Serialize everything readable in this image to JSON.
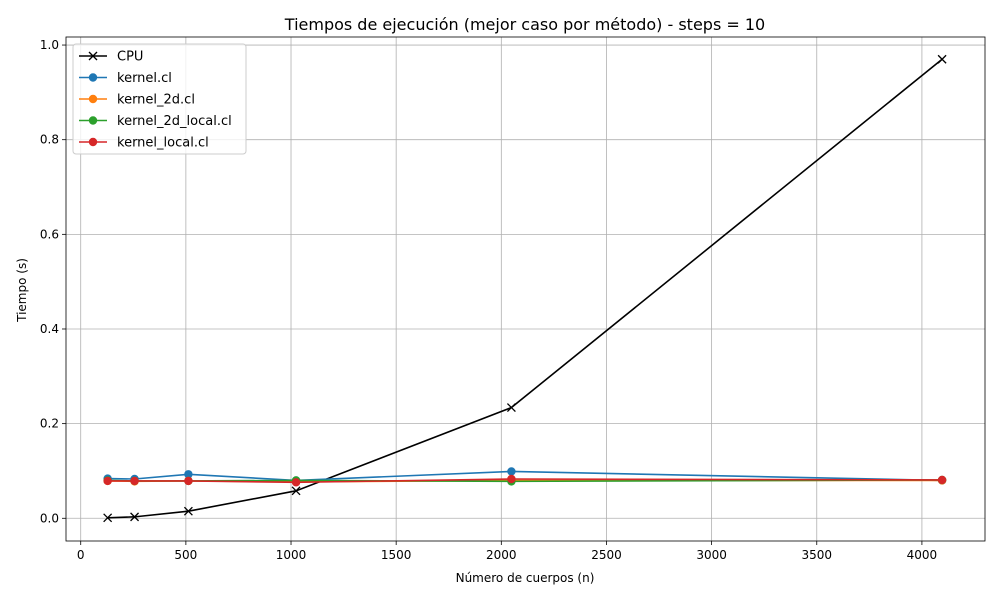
{
  "chart_data": {
    "type": "line",
    "title": "Tiempos de ejecución (mejor caso por método) - steps = 10",
    "xlabel": "Número de cuerpos (n)",
    "ylabel": "Tiempo (s)",
    "xlim": [
      -70,
      4300
    ],
    "ylim": [
      -0.048,
      1.017
    ],
    "xticks": [
      0,
      500,
      1000,
      1500,
      2000,
      2500,
      3000,
      3500,
      4000
    ],
    "yticks": [
      0.0,
      0.2,
      0.4,
      0.6,
      0.8,
      1.0
    ],
    "xtick_labels": [
      "0",
      "500",
      "1000",
      "1500",
      "2000",
      "2500",
      "3000",
      "3500",
      "4000"
    ],
    "ytick_labels": [
      "0.0",
      "0.2",
      "0.4",
      "0.6",
      "0.8",
      "1.0"
    ],
    "grid": true,
    "legend_position": "top-left",
    "x": [
      128,
      256,
      512,
      1024,
      2048,
      4096
    ],
    "series": [
      {
        "name": "CPU",
        "color": "#000000",
        "marker": "x",
        "values": [
          0.001,
          0.003,
          0.015,
          0.058,
          0.234,
          0.97
        ]
      },
      {
        "name": "kernel.cl",
        "color": "#1f77b4",
        "marker": "o",
        "values": [
          0.084,
          0.083,
          0.093,
          0.08,
          0.099,
          0.08
        ]
      },
      {
        "name": "kernel_2d.cl",
        "color": "#ff7f0e",
        "marker": "o",
        "values": [
          0.079,
          0.078,
          0.079,
          0.077,
          0.08,
          0.08
        ]
      },
      {
        "name": "kernel_2d_local.cl",
        "color": "#2ca02c",
        "marker": "o",
        "values": [
          0.08,
          0.079,
          0.079,
          0.08,
          0.078,
          0.081
        ]
      },
      {
        "name": "kernel_local.cl",
        "color": "#d62728",
        "marker": "o",
        "values": [
          0.079,
          0.079,
          0.079,
          0.076,
          0.083,
          0.081
        ]
      }
    ]
  }
}
